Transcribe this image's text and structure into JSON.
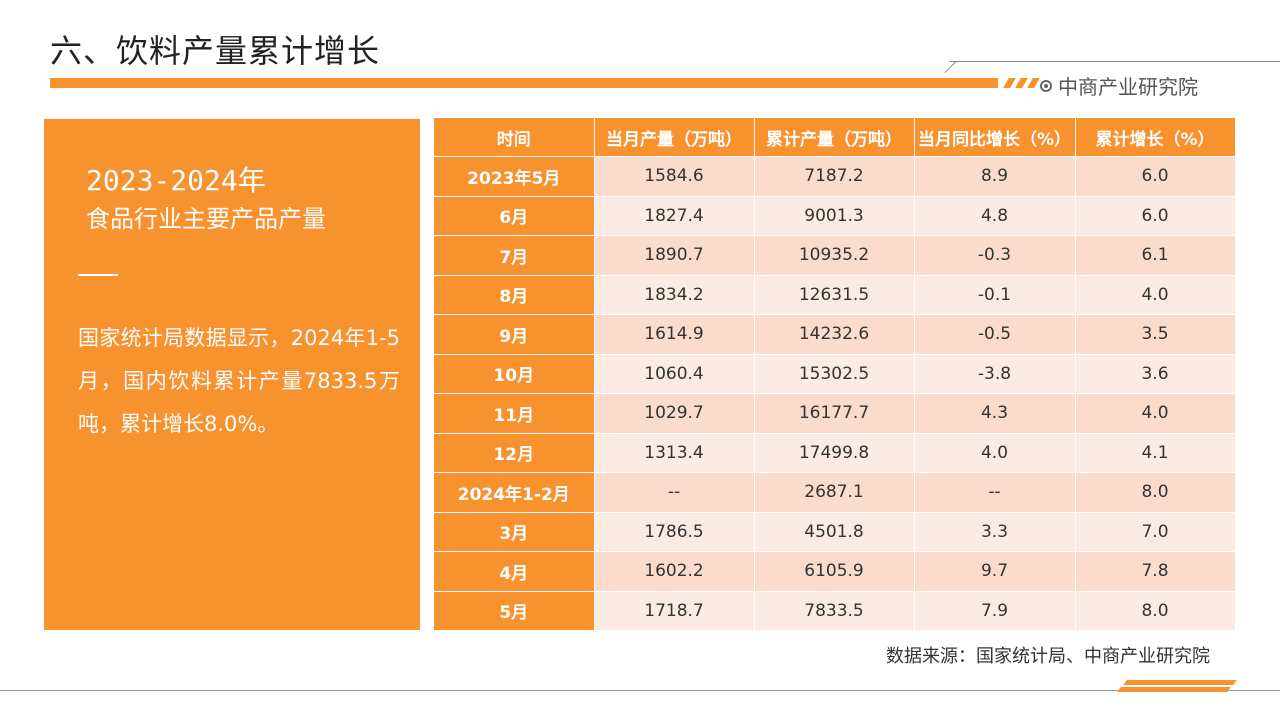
{
  "header": {
    "title": "六、饮料产量累计增长",
    "brand": "中商产业研究院"
  },
  "panel": {
    "heading_line1": "2023-2024年",
    "heading_line2": "食品行业主要产品产量",
    "body": "国家统计局数据显示，2024年1-5月，国内饮料累计产量7833.5万吨，累计增长8.0%。"
  },
  "table": {
    "columns": [
      "时间",
      "当月产量（万吨）",
      "累计产量（万吨）",
      "当月同比增长（%）",
      "累计增长（%）"
    ],
    "rows": [
      [
        "2023年5月",
        "1584.6",
        "7187.2",
        "8.9",
        "6.0"
      ],
      [
        "6月",
        "1827.4",
        "9001.3",
        "4.8",
        "6.0"
      ],
      [
        "7月",
        "1890.7",
        "10935.2",
        "-0.3",
        "6.1"
      ],
      [
        "8月",
        "1834.2",
        "12631.5",
        "-0.1",
        "4.0"
      ],
      [
        "9月",
        "1614.9",
        "14232.6",
        "-0.5",
        "3.5"
      ],
      [
        "10月",
        "1060.4",
        "15302.5",
        "-3.8",
        "3.6"
      ],
      [
        "11月",
        "1029.7",
        "16177.7",
        "4.3",
        "4.0"
      ],
      [
        "12月",
        "1313.4",
        "17499.8",
        "4.0",
        "4.1"
      ],
      [
        "2024年1-2月",
        "--",
        "2687.1",
        "--",
        "8.0"
      ],
      [
        "3月",
        "1786.5",
        "4501.8",
        "3.3",
        "7.0"
      ],
      [
        "4月",
        "1602.2",
        "6105.9",
        "9.7",
        "7.8"
      ],
      [
        "5月",
        "1718.7",
        "7833.5",
        "7.9",
        "8.0"
      ]
    ]
  },
  "footer": {
    "source": "数据来源：国家统计局、中商产业研究院"
  },
  "colors": {
    "accent": "#f7922f",
    "row_odd": "#f9dccc",
    "row_even": "#fcebe2"
  }
}
